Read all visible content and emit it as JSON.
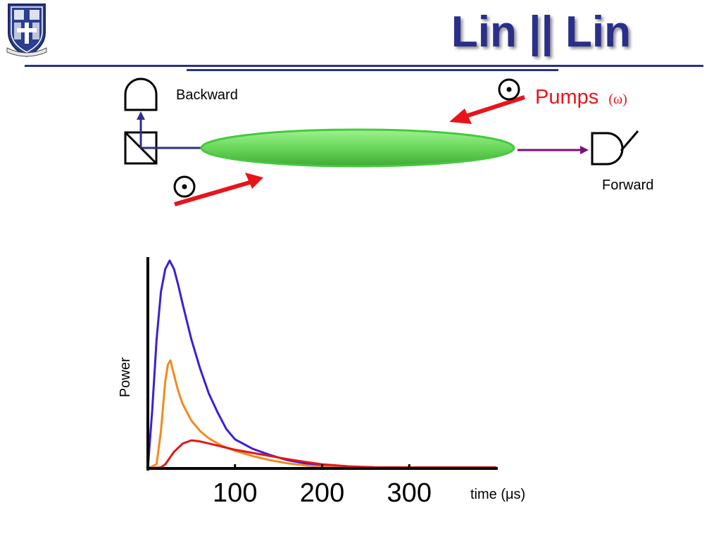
{
  "title": "Lin || Lin",
  "diagram": {
    "backward_label": "Backward",
    "forward_label": "Forward",
    "pumps_label": "Pumps",
    "pumps_omega": "(ω)",
    "colors": {
      "beam": "#2d2f8a",
      "forward_arrow": "#7a0f7a",
      "pump_arrow": "#e8141a",
      "sample": "#5ec95a"
    }
  },
  "chart_data": {
    "type": "line",
    "ylabel": "Power",
    "xlabel": "time (μs)",
    "x_ticks": [
      "100",
      "200",
      "300"
    ],
    "xlim": [
      0,
      400
    ],
    "ylim": [
      0,
      1
    ],
    "series": [
      {
        "color": "#3a1fd6",
        "x": [
          0,
          5,
          10,
          15,
          20,
          25,
          30,
          35,
          40,
          50,
          60,
          70,
          80,
          90,
          100,
          120,
          140,
          160,
          180,
          200,
          230,
          260,
          300,
          350,
          400
        ],
        "y": [
          0,
          0.28,
          0.62,
          0.85,
          0.96,
          1.0,
          0.96,
          0.88,
          0.79,
          0.62,
          0.48,
          0.36,
          0.27,
          0.19,
          0.14,
          0.095,
          0.065,
          0.04,
          0.025,
          0.014,
          0.008,
          0.005,
          0.004,
          0.004,
          0.004
        ]
      },
      {
        "color": "#f28a1e",
        "x": [
          0,
          10,
          15,
          20,
          23,
          26,
          30,
          35,
          40,
          50,
          60,
          70,
          80,
          90,
          100,
          120,
          140,
          160,
          180,
          200,
          230,
          260,
          300,
          350,
          400
        ],
        "y": [
          0,
          0.02,
          0.18,
          0.42,
          0.5,
          0.52,
          0.45,
          0.37,
          0.31,
          0.23,
          0.18,
          0.145,
          0.12,
          0.1,
          0.085,
          0.06,
          0.04,
          0.025,
          0.015,
          0.008,
          0.005,
          0.004,
          0.004,
          0.004,
          0.004
        ]
      },
      {
        "color": "#e01818",
        "x": [
          0,
          15,
          20,
          25,
          30,
          35,
          40,
          50,
          60,
          70,
          80,
          90,
          100,
          120,
          140,
          160,
          180,
          200,
          230,
          260,
          300,
          350,
          400
        ],
        "y": [
          0,
          0.005,
          0.02,
          0.05,
          0.08,
          0.1,
          0.12,
          0.135,
          0.13,
          0.12,
          0.11,
          0.1,
          0.09,
          0.075,
          0.06,
          0.045,
          0.032,
          0.02,
          0.01,
          0.006,
          0.005,
          0.005,
          0.005
        ]
      }
    ]
  }
}
